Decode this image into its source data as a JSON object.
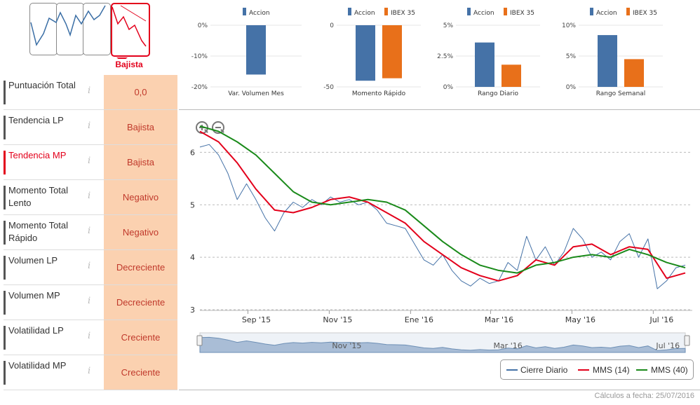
{
  "trend": {
    "selected_label": "Bajista",
    "options": [
      "Lateral",
      "Alcista",
      "Neutral",
      "Bajista"
    ]
  },
  "indicators": [
    {
      "name": "Puntuación Total",
      "value": "0,0",
      "active": false
    },
    {
      "name": "Tendencia LP",
      "value": "Bajista",
      "active": false
    },
    {
      "name": "Tendencia MP",
      "value": "Bajista",
      "active": true
    },
    {
      "name": "Momento Total Lento",
      "value": "Negativo",
      "active": false
    },
    {
      "name": "Momento Total Rápido",
      "value": "Negativo",
      "active": false
    },
    {
      "name": "Volumen LP",
      "value": "Decreciente",
      "active": false
    },
    {
      "name": "Volumen MP",
      "value": "Decreciente",
      "active": false
    },
    {
      "name": "Volatilidad LP",
      "value": "Creciente",
      "active": false
    },
    {
      "name": "Volatilidad MP",
      "value": "Creciente",
      "active": false
    }
  ],
  "info_glyph": "i",
  "footer": "Cálculos a fecha: 25/07/2016",
  "colors": {
    "accion": "#4572a7",
    "ibex": "#e8701a",
    "cierre": "#4572a7",
    "mms14": "#e3001b",
    "mms40": "#1a8a1a",
    "panel": "#fbd1b0",
    "active": "#e3001b"
  },
  "chart_data": [
    {
      "type": "bar",
      "title": "Var. Volumen Mes",
      "legend": [
        "Accion"
      ],
      "ylim": [
        -20,
        0
      ],
      "yticks": [
        "0%",
        "-10%",
        "-20%"
      ],
      "series": [
        {
          "name": "Accion",
          "values": [
            -16
          ]
        }
      ]
    },
    {
      "type": "bar",
      "title": "Momento Rápido",
      "legend": [
        "Accion",
        "IBEX 35"
      ],
      "ylim": [
        -50,
        0
      ],
      "yticks": [
        "0",
        "-50"
      ],
      "series": [
        {
          "name": "Accion",
          "values": [
            -45
          ]
        },
        {
          "name": "IBEX 35",
          "values": [
            -43
          ]
        }
      ]
    },
    {
      "type": "bar",
      "title": "Rango Diario",
      "legend": [
        "Accion",
        "IBEX 35"
      ],
      "ylim": [
        0,
        5
      ],
      "yticks": [
        "5%",
        "2.5%",
        "0%"
      ],
      "series": [
        {
          "name": "Accion",
          "values": [
            3.6
          ]
        },
        {
          "name": "IBEX 35",
          "values": [
            1.8
          ]
        }
      ]
    },
    {
      "type": "bar",
      "title": "Rango Semanal",
      "legend": [
        "Accion",
        "IBEX 35"
      ],
      "ylim": [
        0,
        10
      ],
      "yticks": [
        "10%",
        "5%",
        "0%"
      ],
      "series": [
        {
          "name": "Accion",
          "values": [
            8.4
          ]
        },
        {
          "name": "IBEX 35",
          "values": [
            4.5
          ]
        }
      ]
    },
    {
      "type": "line",
      "title": "",
      "xlabel": "",
      "ylabel": "",
      "ylim": [
        3,
        6.5
      ],
      "yticks": [
        6,
        5,
        4,
        3
      ],
      "xticks": [
        "Sep '15",
        "Nov '15",
        "Ene '16",
        "Mar '16",
        "May '16",
        "Jul '16"
      ],
      "navigator_labels": [
        "Nov '15",
        "Mar '16",
        "Jul '16"
      ],
      "x_range": [
        "2015-07-27",
        "2016-07-25"
      ],
      "series": [
        {
          "name": "Cierre Diario",
          "x": [
            "2015-07-27",
            "2015-08-03",
            "2015-08-10",
            "2015-08-17",
            "2015-08-24",
            "2015-08-31",
            "2015-09-07",
            "2015-09-14",
            "2015-09-21",
            "2015-09-28",
            "2015-10-05",
            "2015-10-12",
            "2015-10-19",
            "2015-10-26",
            "2015-11-02",
            "2015-11-09",
            "2015-11-16",
            "2015-11-23",
            "2015-11-30",
            "2015-12-07",
            "2015-12-14",
            "2015-12-21",
            "2015-12-28",
            "2016-01-04",
            "2016-01-11",
            "2016-01-18",
            "2016-01-25",
            "2016-02-01",
            "2016-02-08",
            "2016-02-15",
            "2016-02-22",
            "2016-02-29",
            "2016-03-07",
            "2016-03-14",
            "2016-03-21",
            "2016-03-28",
            "2016-04-04",
            "2016-04-11",
            "2016-04-18",
            "2016-04-25",
            "2016-05-02",
            "2016-05-09",
            "2016-05-16",
            "2016-05-23",
            "2016-05-30",
            "2016-06-06",
            "2016-06-13",
            "2016-06-20",
            "2016-06-27",
            "2016-07-04",
            "2016-07-11",
            "2016-07-18",
            "2016-07-25"
          ],
          "values": [
            6.1,
            6.15,
            5.95,
            5.6,
            5.1,
            5.4,
            5.1,
            4.75,
            4.5,
            4.85,
            5.05,
            4.95,
            5.1,
            5.0,
            5.15,
            5.05,
            5.1,
            5.0,
            5.05,
            4.9,
            4.65,
            4.6,
            4.55,
            4.25,
            3.95,
            3.85,
            4.05,
            3.75,
            3.55,
            3.45,
            3.6,
            3.5,
            3.55,
            3.9,
            3.75,
            4.4,
            3.95,
            4.2,
            3.85,
            4.1,
            4.55,
            4.35,
            4.0,
            4.1,
            3.95,
            4.3,
            4.45,
            4.0,
            4.35,
            3.4,
            3.55,
            3.8,
            3.85
          ]
        },
        {
          "name": "MMS (14)",
          "x": [
            "2015-07-27",
            "2015-08-10",
            "2015-08-24",
            "2015-09-07",
            "2015-09-21",
            "2015-10-05",
            "2015-10-19",
            "2015-11-02",
            "2015-11-16",
            "2015-11-30",
            "2015-12-14",
            "2015-12-28",
            "2016-01-11",
            "2016-01-25",
            "2016-02-08",
            "2016-02-22",
            "2016-03-07",
            "2016-03-21",
            "2016-04-04",
            "2016-04-18",
            "2016-05-02",
            "2016-05-16",
            "2016-05-30",
            "2016-06-13",
            "2016-06-27",
            "2016-07-11",
            "2016-07-25"
          ],
          "values": [
            6.4,
            6.2,
            5.8,
            5.3,
            4.9,
            4.85,
            4.95,
            5.1,
            5.15,
            5.05,
            4.85,
            4.65,
            4.3,
            4.05,
            3.8,
            3.65,
            3.55,
            3.65,
            3.95,
            3.85,
            4.2,
            4.25,
            4.05,
            4.2,
            4.15,
            3.6,
            3.7
          ]
        },
        {
          "name": "MMS (40)",
          "x": [
            "2015-07-27",
            "2015-08-10",
            "2015-08-24",
            "2015-09-07",
            "2015-09-21",
            "2015-10-05",
            "2015-10-19",
            "2015-11-02",
            "2015-11-16",
            "2015-11-30",
            "2015-12-14",
            "2015-12-28",
            "2016-01-11",
            "2016-01-25",
            "2016-02-08",
            "2016-02-22",
            "2016-03-07",
            "2016-03-21",
            "2016-04-04",
            "2016-04-18",
            "2016-05-02",
            "2016-05-16",
            "2016-05-30",
            "2016-06-13",
            "2016-06-27",
            "2016-07-11",
            "2016-07-25"
          ],
          "values": [
            6.5,
            6.4,
            6.2,
            5.95,
            5.6,
            5.25,
            5.05,
            5.0,
            5.05,
            5.1,
            5.05,
            4.9,
            4.6,
            4.3,
            4.05,
            3.85,
            3.75,
            3.7,
            3.85,
            3.9,
            4.0,
            4.05,
            4.0,
            4.15,
            4.05,
            3.9,
            3.8
          ]
        }
      ]
    }
  ]
}
